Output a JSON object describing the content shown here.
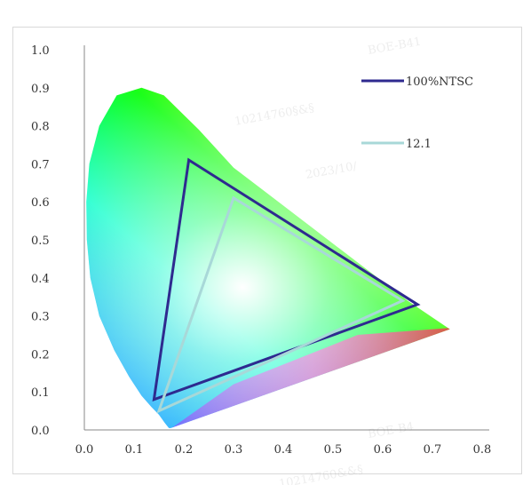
{
  "chart_data": {
    "type": "scatter",
    "title": "",
    "xlabel": "",
    "ylabel": "",
    "xlim": [
      0.0,
      0.8
    ],
    "ylim": [
      0.0,
      1.0
    ],
    "x_ticks": [
      "0.0",
      "0.1",
      "0.2",
      "0.3",
      "0.4",
      "0.5",
      "0.6",
      "0.7",
      "0.8"
    ],
    "y_ticks": [
      "0.0",
      "0.1",
      "0.2",
      "0.3",
      "0.4",
      "0.5",
      "0.6",
      "0.7",
      "0.8",
      "0.9",
      "1.0"
    ],
    "grid": false,
    "legend_position": "top-right",
    "locus_boundary": [
      [
        0.174,
        0.005
      ],
      [
        0.17,
        0.005
      ],
      [
        0.162,
        0.018
      ],
      [
        0.15,
        0.04
      ],
      [
        0.135,
        0.06
      ],
      [
        0.115,
        0.09
      ],
      [
        0.09,
        0.14
      ],
      [
        0.06,
        0.21
      ],
      [
        0.03,
        0.3
      ],
      [
        0.012,
        0.4
      ],
      [
        0.005,
        0.5
      ],
      [
        0.004,
        0.6
      ],
      [
        0.01,
        0.7
      ],
      [
        0.03,
        0.8
      ],
      [
        0.065,
        0.88
      ],
      [
        0.115,
        0.9
      ],
      [
        0.16,
        0.88
      ],
      [
        0.23,
        0.79
      ],
      [
        0.3,
        0.69
      ],
      [
        0.37,
        0.62
      ],
      [
        0.44,
        0.55
      ],
      [
        0.51,
        0.48
      ],
      [
        0.58,
        0.41
      ],
      [
        0.65,
        0.34
      ],
      [
        0.735,
        0.265
      ]
    ],
    "series": [
      {
        "name": "100%NTSC",
        "color": "#2e2a8f",
        "points": [
          [
            0.67,
            0.33
          ],
          [
            0.21,
            0.71
          ],
          [
            0.14,
            0.08
          ]
        ]
      },
      {
        "name": "12.1",
        "color": "#a8d8d8",
        "points": [
          [
            0.64,
            0.34
          ],
          [
            0.3,
            0.61
          ],
          [
            0.15,
            0.05
          ]
        ]
      }
    ]
  },
  "watermarks": [
    "BOE-B41",
    "10214760§&§",
    "2023/10/",
    "BOE-B4",
    "10214760&&§"
  ]
}
